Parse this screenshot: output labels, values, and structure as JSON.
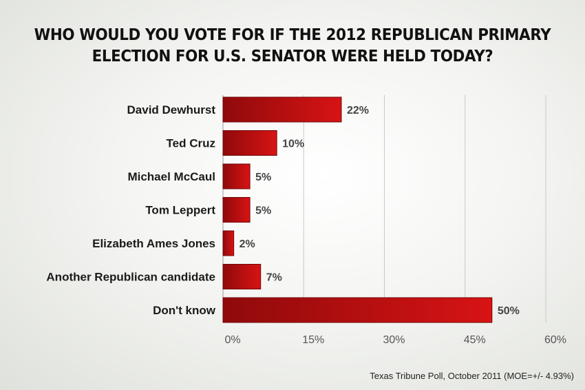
{
  "chart_data": {
    "type": "bar",
    "orientation": "horizontal",
    "title_lines": [
      "WHO WOULD YOU VOTE FOR IF THE 2012 REPUBLICAN PRIMARY",
      "ELECTION FOR U.S. SENATOR WERE HELD TODAY?"
    ],
    "categories": [
      "David Dewhurst",
      "Ted Cruz",
      "Michael McCaul",
      "Tom Leppert",
      "Elizabeth Ames Jones",
      "Another Republican candidate",
      "Don't know"
    ],
    "values": [
      22,
      10,
      5,
      5,
      2,
      7,
      50
    ],
    "value_labels": [
      "22%",
      "10%",
      "5%",
      "5%",
      "2%",
      "7%",
      "50%"
    ],
    "x_ticks": [
      "0%",
      "15%",
      "30%",
      "45%",
      "60%"
    ],
    "xlim": [
      0,
      60
    ],
    "grid": true,
    "bar_color": "#b80f10",
    "source": "Texas Tribune Poll, October 2011 (MOE=+/- 4.93%)"
  }
}
